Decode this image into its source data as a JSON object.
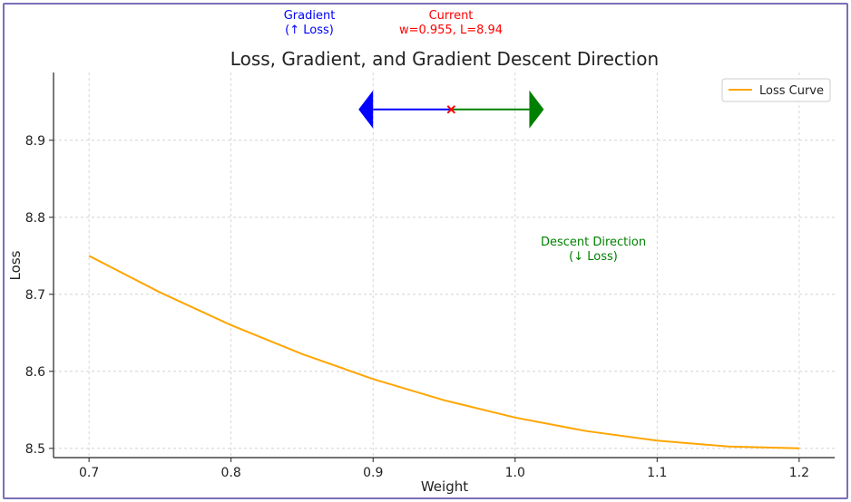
{
  "chart_data": {
    "type": "line",
    "title": "Loss, Gradient, and Gradient Descent Direction",
    "xlabel": "Weight",
    "ylabel": "Loss",
    "xlim": [
      0.675,
      1.225
    ],
    "ylim": [
      8.488,
      8.988
    ],
    "grid": true,
    "legend_position": "top-right",
    "x_ticks": [
      0.7,
      0.8,
      0.9,
      1.0,
      1.1,
      1.2
    ],
    "x_tick_labels": [
      "0.7",
      "0.8",
      "0.9",
      "1.0",
      "1.1",
      "1.2"
    ],
    "y_ticks": [
      8.5,
      8.6,
      8.7,
      8.8,
      8.9
    ],
    "y_tick_labels": [
      "8.5",
      "8.6",
      "8.7",
      "8.8",
      "8.9"
    ],
    "series": [
      {
        "name": "Loss Curve",
        "color": "#ffa500",
        "x": [
          0.7,
          0.75,
          0.8,
          0.85,
          0.9,
          0.95,
          1.0,
          1.05,
          1.1,
          1.15,
          1.2
        ],
        "y": [
          8.75,
          8.7025,
          8.66,
          8.6225,
          8.59,
          8.5625,
          8.54,
          8.5225,
          8.51,
          8.5025,
          8.5
        ]
      }
    ],
    "current_point": {
      "x": 0.955,
      "y": 8.94,
      "color": "#ff0000",
      "marker": "x"
    },
    "arrows": [
      {
        "name": "gradient",
        "from": [
          0.955,
          8.94
        ],
        "to": [
          0.9,
          8.94
        ],
        "color": "#0000ff"
      },
      {
        "name": "descent",
        "from": [
          0.955,
          8.94
        ],
        "to": [
          1.01,
          8.94
        ],
        "color": "#008000"
      }
    ],
    "annotations": {
      "gradient": {
        "line1": "Gradient",
        "line2": "(↑ Loss)",
        "color": "#0000ff"
      },
      "current": {
        "line1": "Current",
        "line2": "w=0.955, L=8.94",
        "color": "#ff0000"
      },
      "descent": {
        "line1": "Descent Direction",
        "line2": "(↓ Loss)",
        "color": "#008000"
      }
    }
  }
}
